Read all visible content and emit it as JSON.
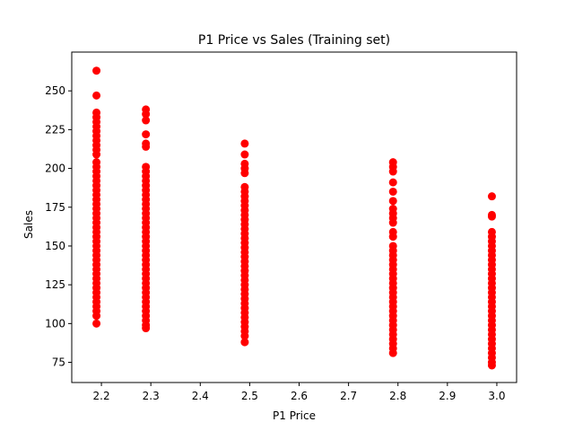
{
  "chart_data": {
    "type": "scatter",
    "title": "P1 Price vs Sales (Training set)",
    "xlabel": "P1 Price",
    "ylabel": "Sales",
    "xlim": [
      2.14,
      3.04
    ],
    "ylim": [
      62,
      275
    ],
    "x_ticks": [
      2.2,
      2.3,
      2.4,
      2.5,
      2.6,
      2.7,
      2.8,
      2.9,
      3.0
    ],
    "x_tick_labels": [
      "2.2",
      "2.3",
      "2.4",
      "2.5",
      "2.6",
      "2.7",
      "2.8",
      "2.9",
      "3.0"
    ],
    "y_ticks": [
      75,
      100,
      125,
      150,
      175,
      200,
      225,
      250
    ],
    "y_tick_labels": [
      "75",
      "100",
      "125",
      "150",
      "175",
      "200",
      "225",
      "250"
    ],
    "grid": false,
    "legend": "none",
    "marker_color": "#ff0000",
    "series": [
      {
        "points": [
          [
            2.19,
            263
          ],
          [
            2.19,
            247
          ],
          [
            2.19,
            236
          ],
          [
            2.19,
            233
          ],
          [
            2.19,
            230
          ],
          [
            2.19,
            227
          ],
          [
            2.19,
            224
          ],
          [
            2.19,
            221
          ],
          [
            2.19,
            218
          ],
          [
            2.19,
            215
          ],
          [
            2.19,
            212
          ],
          [
            2.19,
            209
          ],
          [
            2.19,
            204
          ],
          [
            2.19,
            201
          ],
          [
            2.19,
            198
          ],
          [
            2.19,
            195
          ],
          [
            2.19,
            192
          ],
          [
            2.19,
            189
          ],
          [
            2.19,
            186
          ],
          [
            2.19,
            183
          ],
          [
            2.19,
            180
          ],
          [
            2.19,
            177
          ],
          [
            2.19,
            174
          ],
          [
            2.19,
            171
          ],
          [
            2.19,
            168
          ],
          [
            2.19,
            165
          ],
          [
            2.19,
            162
          ],
          [
            2.19,
            159
          ],
          [
            2.19,
            156
          ],
          [
            2.19,
            153
          ],
          [
            2.19,
            150
          ],
          [
            2.19,
            147
          ],
          [
            2.19,
            144
          ],
          [
            2.19,
            141
          ],
          [
            2.19,
            138
          ],
          [
            2.19,
            135
          ],
          [
            2.19,
            132
          ],
          [
            2.19,
            129
          ],
          [
            2.19,
            126
          ],
          [
            2.19,
            123
          ],
          [
            2.19,
            120
          ],
          [
            2.19,
            117
          ],
          [
            2.19,
            114
          ],
          [
            2.19,
            111
          ],
          [
            2.19,
            108
          ],
          [
            2.19,
            105
          ],
          [
            2.19,
            100
          ],
          [
            2.29,
            238
          ],
          [
            2.29,
            235
          ],
          [
            2.29,
            231
          ],
          [
            2.29,
            222
          ],
          [
            2.29,
            216
          ],
          [
            2.29,
            214
          ],
          [
            2.29,
            201
          ],
          [
            2.29,
            198
          ],
          [
            2.29,
            195
          ],
          [
            2.29,
            192
          ],
          [
            2.29,
            189
          ],
          [
            2.29,
            186
          ],
          [
            2.29,
            183
          ],
          [
            2.29,
            180
          ],
          [
            2.29,
            177
          ],
          [
            2.29,
            174
          ],
          [
            2.29,
            171
          ],
          [
            2.29,
            168
          ],
          [
            2.29,
            165
          ],
          [
            2.29,
            162
          ],
          [
            2.29,
            159
          ],
          [
            2.29,
            156
          ],
          [
            2.29,
            153
          ],
          [
            2.29,
            150
          ],
          [
            2.29,
            147
          ],
          [
            2.29,
            144
          ],
          [
            2.29,
            141
          ],
          [
            2.29,
            138
          ],
          [
            2.29,
            135
          ],
          [
            2.29,
            132
          ],
          [
            2.29,
            129
          ],
          [
            2.29,
            126
          ],
          [
            2.29,
            123
          ],
          [
            2.29,
            120
          ],
          [
            2.29,
            117
          ],
          [
            2.29,
            114
          ],
          [
            2.29,
            111
          ],
          [
            2.29,
            108
          ],
          [
            2.29,
            105
          ],
          [
            2.29,
            102
          ],
          [
            2.29,
            99
          ],
          [
            2.29,
            97
          ],
          [
            2.49,
            216
          ],
          [
            2.49,
            209
          ],
          [
            2.49,
            203
          ],
          [
            2.49,
            200
          ],
          [
            2.49,
            197
          ],
          [
            2.49,
            188
          ],
          [
            2.49,
            185
          ],
          [
            2.49,
            182
          ],
          [
            2.49,
            179
          ],
          [
            2.49,
            176
          ],
          [
            2.49,
            173
          ],
          [
            2.49,
            170
          ],
          [
            2.49,
            167
          ],
          [
            2.49,
            164
          ],
          [
            2.49,
            161
          ],
          [
            2.49,
            158
          ],
          [
            2.49,
            155
          ],
          [
            2.49,
            152
          ],
          [
            2.49,
            149
          ],
          [
            2.49,
            146
          ],
          [
            2.49,
            143
          ],
          [
            2.49,
            140
          ],
          [
            2.49,
            137
          ],
          [
            2.49,
            134
          ],
          [
            2.49,
            131
          ],
          [
            2.49,
            128
          ],
          [
            2.49,
            125
          ],
          [
            2.49,
            122
          ],
          [
            2.49,
            119
          ],
          [
            2.49,
            116
          ],
          [
            2.49,
            113
          ],
          [
            2.49,
            110
          ],
          [
            2.49,
            107
          ],
          [
            2.49,
            104
          ],
          [
            2.49,
            101
          ],
          [
            2.49,
            98
          ],
          [
            2.49,
            95
          ],
          [
            2.49,
            92
          ],
          [
            2.49,
            88
          ],
          [
            2.79,
            204
          ],
          [
            2.79,
            201
          ],
          [
            2.79,
            198
          ],
          [
            2.79,
            191
          ],
          [
            2.79,
            185
          ],
          [
            2.79,
            179
          ],
          [
            2.79,
            174
          ],
          [
            2.79,
            171
          ],
          [
            2.79,
            168
          ],
          [
            2.79,
            165
          ],
          [
            2.79,
            159
          ],
          [
            2.79,
            156
          ],
          [
            2.79,
            150
          ],
          [
            2.79,
            147
          ],
          [
            2.79,
            144
          ],
          [
            2.79,
            141
          ],
          [
            2.79,
            138
          ],
          [
            2.79,
            135
          ],
          [
            2.79,
            132
          ],
          [
            2.79,
            129
          ],
          [
            2.79,
            126
          ],
          [
            2.79,
            123
          ],
          [
            2.79,
            120
          ],
          [
            2.79,
            117
          ],
          [
            2.79,
            114
          ],
          [
            2.79,
            111
          ],
          [
            2.79,
            108
          ],
          [
            2.79,
            105
          ],
          [
            2.79,
            102
          ],
          [
            2.79,
            99
          ],
          [
            2.79,
            96
          ],
          [
            2.79,
            93
          ],
          [
            2.79,
            90
          ],
          [
            2.79,
            87
          ],
          [
            2.79,
            84
          ],
          [
            2.79,
            81
          ],
          [
            2.99,
            182
          ],
          [
            2.99,
            170
          ],
          [
            2.99,
            169
          ],
          [
            2.99,
            159
          ],
          [
            2.99,
            156
          ],
          [
            2.99,
            153
          ],
          [
            2.99,
            150
          ],
          [
            2.99,
            147
          ],
          [
            2.99,
            144
          ],
          [
            2.99,
            141
          ],
          [
            2.99,
            138
          ],
          [
            2.99,
            135
          ],
          [
            2.99,
            132
          ],
          [
            2.99,
            129
          ],
          [
            2.99,
            126
          ],
          [
            2.99,
            123
          ],
          [
            2.99,
            120
          ],
          [
            2.99,
            117
          ],
          [
            2.99,
            114
          ],
          [
            2.99,
            111
          ],
          [
            2.99,
            108
          ],
          [
            2.99,
            105
          ],
          [
            2.99,
            102
          ],
          [
            2.99,
            99
          ],
          [
            2.99,
            96
          ],
          [
            2.99,
            93
          ],
          [
            2.99,
            90
          ],
          [
            2.99,
            87
          ],
          [
            2.99,
            84
          ],
          [
            2.99,
            81
          ],
          [
            2.99,
            78
          ],
          [
            2.99,
            75
          ],
          [
            2.99,
            73
          ]
        ]
      }
    ]
  }
}
